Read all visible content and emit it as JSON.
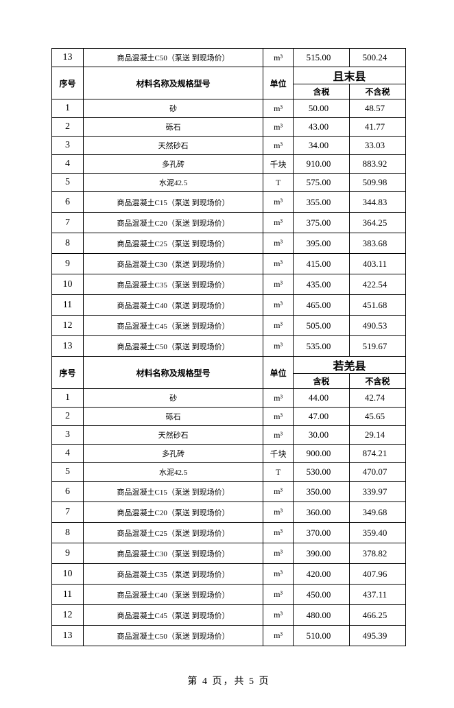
{
  "topRow": {
    "idx": "13",
    "name": "商品混凝土C50（泵送 到现场价）",
    "unit": "m³",
    "tax": "515.00",
    "notax": "500.24"
  },
  "headers": {
    "idx": "序号",
    "name": "材料名称及规格型号",
    "unit": "单位",
    "tax": "含税",
    "notax": "不含税"
  },
  "section1": {
    "region": "且末县",
    "rows": [
      {
        "idx": "1",
        "name": "砂",
        "unit": "m³",
        "tax": "50.00",
        "notax": "48.57"
      },
      {
        "idx": "2",
        "name": "砾石",
        "unit": "m³",
        "tax": "43.00",
        "notax": "41.77"
      },
      {
        "idx": "3",
        "name": "天然砂石",
        "unit": "m³",
        "tax": "34.00",
        "notax": "33.03"
      },
      {
        "idx": "4",
        "name": "多孔砖",
        "unit": "千块",
        "tax": "910.00",
        "notax": "883.92"
      },
      {
        "idx": "5",
        "name": "水泥42.5",
        "unit": "T",
        "tax": "575.00",
        "notax": "509.98"
      },
      {
        "idx": "6",
        "name": "商品混凝土C15（泵送 到现场价）",
        "unit": "m³",
        "tax": "355.00",
        "notax": "344.83"
      },
      {
        "idx": "7",
        "name": "商品混凝土C20（泵送 到现场价）",
        "unit": "m³",
        "tax": "375.00",
        "notax": "364.25"
      },
      {
        "idx": "8",
        "name": "商品混凝土C25（泵送 到现场价）",
        "unit": "m³",
        "tax": "395.00",
        "notax": "383.68"
      },
      {
        "idx": "9",
        "name": "商品混凝土C30（泵送 到现场价）",
        "unit": "m³",
        "tax": "415.00",
        "notax": "403.11"
      },
      {
        "idx": "10",
        "name": "商品混凝土C35（泵送 到现场价）",
        "unit": "m³",
        "tax": "435.00",
        "notax": "422.54"
      },
      {
        "idx": "11",
        "name": "商品混凝土C40（泵送 到现场价）",
        "unit": "m³",
        "tax": "465.00",
        "notax": "451.68"
      },
      {
        "idx": "12",
        "name": "商品混凝土C45（泵送 到现场价）",
        "unit": "m³",
        "tax": "505.00",
        "notax": "490.53"
      },
      {
        "idx": "13",
        "name": "商品混凝土C50（泵送 到现场价）",
        "unit": "m³",
        "tax": "535.00",
        "notax": "519.67"
      }
    ]
  },
  "section2": {
    "region": "若羌县",
    "rows": [
      {
        "idx": "1",
        "name": "砂",
        "unit": "m³",
        "tax": "44.00",
        "notax": "42.74"
      },
      {
        "idx": "2",
        "name": "砾石",
        "unit": "m³",
        "tax": "47.00",
        "notax": "45.65"
      },
      {
        "idx": "3",
        "name": "天然砂石",
        "unit": "m³",
        "tax": "30.00",
        "notax": "29.14"
      },
      {
        "idx": "4",
        "name": "多孔砖",
        "unit": "千块",
        "tax": "900.00",
        "notax": "874.21"
      },
      {
        "idx": "5",
        "name": "水泥42.5",
        "unit": "T",
        "tax": "530.00",
        "notax": "470.07"
      },
      {
        "idx": "6",
        "name": "商品混凝土C15（泵送 到现场价）",
        "unit": "m³",
        "tax": "350.00",
        "notax": "339.97"
      },
      {
        "idx": "7",
        "name": "商品混凝土C20（泵送 到现场价）",
        "unit": "m³",
        "tax": "360.00",
        "notax": "349.68"
      },
      {
        "idx": "8",
        "name": "商品混凝土C25（泵送 到现场价）",
        "unit": "m³",
        "tax": "370.00",
        "notax": "359.40"
      },
      {
        "idx": "9",
        "name": "商品混凝土C30（泵送 到现场价）",
        "unit": "m³",
        "tax": "390.00",
        "notax": "378.82"
      },
      {
        "idx": "10",
        "name": "商品混凝土C35（泵送 到现场价）",
        "unit": "m³",
        "tax": "420.00",
        "notax": "407.96"
      },
      {
        "idx": "11",
        "name": "商品混凝土C40（泵送 到现场价）",
        "unit": "m³",
        "tax": "450.00",
        "notax": "437.11"
      },
      {
        "idx": "12",
        "name": "商品混凝土C45（泵送 到现场价）",
        "unit": "m³",
        "tax": "480.00",
        "notax": "466.25"
      },
      {
        "idx": "13",
        "name": "商品混凝土C50（泵送 到现场价）",
        "unit": "m³",
        "tax": "510.00",
        "notax": "495.39"
      }
    ]
  },
  "footer": "第 4 页，共 5 页"
}
